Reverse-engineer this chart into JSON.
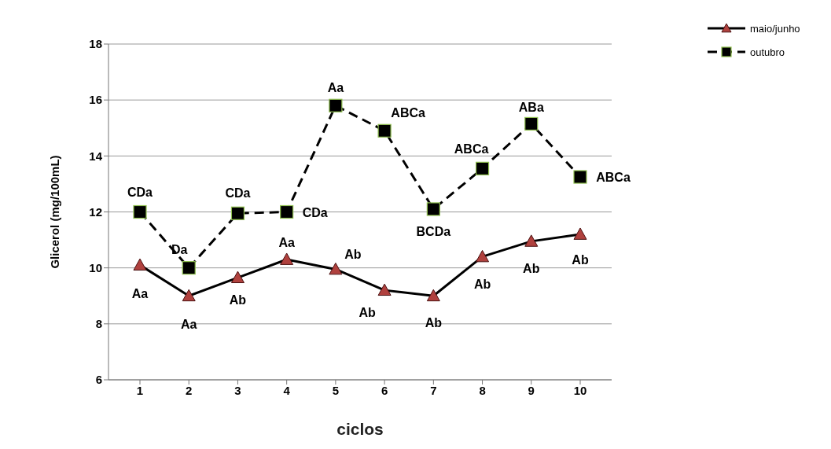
{
  "chart_data": {
    "type": "line",
    "xlabel": "ciclos",
    "ylabel": "Glicerol (mg/100mL)",
    "categories": [
      "1",
      "2",
      "3",
      "4",
      "5",
      "6",
      "7",
      "8",
      "9",
      "10"
    ],
    "series": [
      {
        "name": "maio/junho",
        "color": "#000000",
        "marker": "triangle",
        "line_style": "solid",
        "values": [
          10.1,
          9.0,
          9.65,
          10.3,
          9.95,
          9.2,
          9.0,
          10.4,
          10.95,
          11.2
        ]
      },
      {
        "name": "outubro",
        "color": "#000000",
        "marker": "square",
        "line_style": "dashed",
        "values": [
          12.0,
          10.0,
          11.95,
          12.0,
          15.8,
          14.9,
          12.1,
          13.55,
          15.15,
          13.25
        ]
      }
    ],
    "ylim": [
      6,
      18
    ],
    "yticks": [
      6,
      8,
      10,
      12,
      14,
      16,
      18
    ],
    "grid": "y",
    "legend": "top right",
    "annotations": [
      {
        "text": "Aa",
        "x": "1",
        "y": 10.1
      },
      {
        "text": "Aa",
        "x": "2",
        "y": 9.0
      },
      {
        "text": "Ab",
        "x": "3",
        "y": 9.65
      },
      {
        "text": "Aa",
        "x": "4",
        "y": 10.3
      },
      {
        "text": "Ab",
        "x": "5",
        "y": 9.95
      },
      {
        "text": "Ab",
        "x": "6",
        "y": 9.2
      },
      {
        "text": "Ab",
        "x": "7",
        "y": 9.0
      },
      {
        "text": "Ab",
        "x": "8",
        "y": 10.4
      },
      {
        "text": "Ab",
        "x": "9",
        "y": 10.95
      },
      {
        "text": "Ab",
        "x": "10",
        "y": 11.2
      },
      {
        "text": "CDa",
        "x": "1",
        "y": 12.0
      },
      {
        "text": "Da",
        "x": "2",
        "y": 10.0
      },
      {
        "text": "CDa",
        "x": "3",
        "y": 11.95
      },
      {
        "text": "CDa",
        "x": "4",
        "y": 12.0
      },
      {
        "text": "Aa",
        "x": "5",
        "y": 15.8
      },
      {
        "text": "ABCa",
        "x": "6",
        "y": 14.9
      },
      {
        "text": "BCDa",
        "x": "7",
        "y": 12.1
      },
      {
        "text": "ABCa",
        "x": "8",
        "y": 13.55
      },
      {
        "text": "ABa",
        "x": "9",
        "y": 15.15
      },
      {
        "text": "ABCa",
        "x": "10",
        "y": 13.25
      }
    ]
  }
}
